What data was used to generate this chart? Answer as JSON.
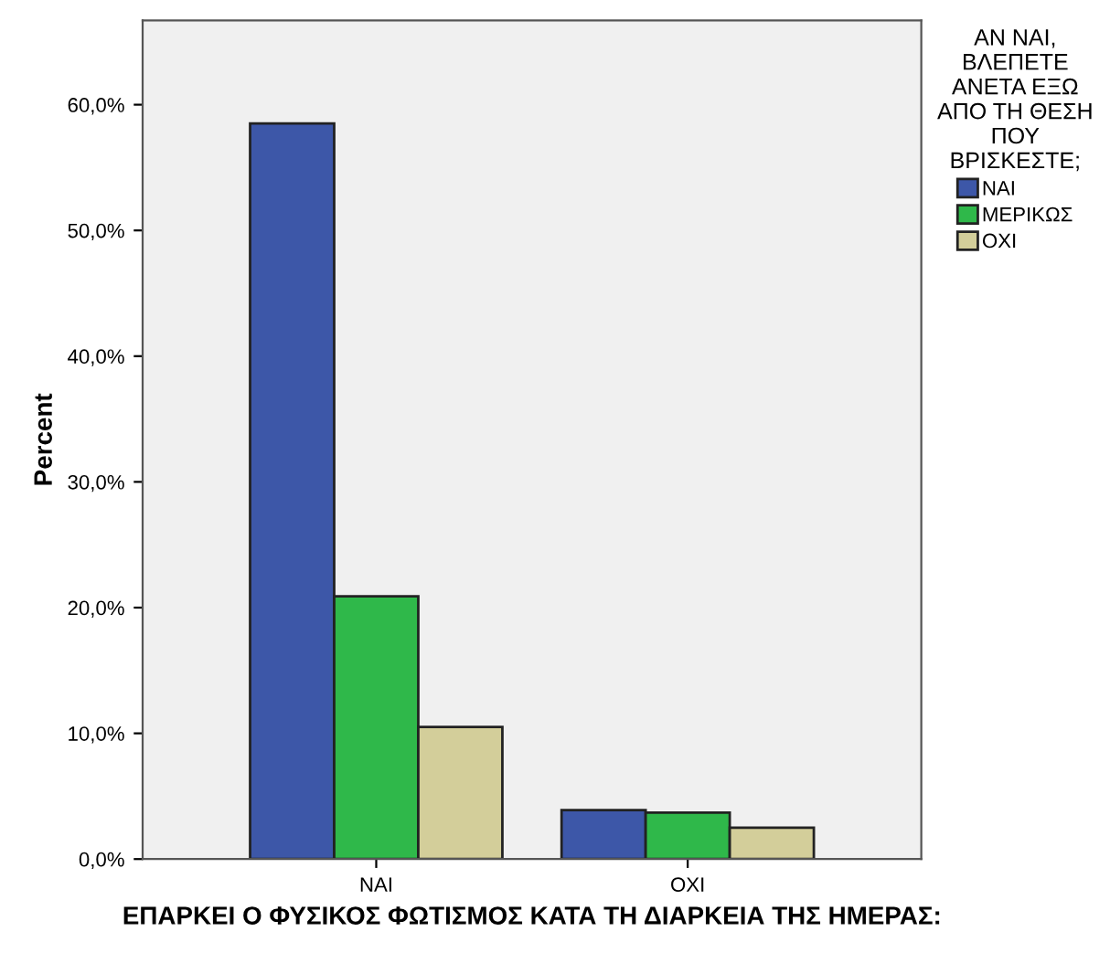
{
  "chart_data": {
    "type": "bar",
    "xlabel": "ΕΠΑΡΚΕΙ Ο ΦΥΣΙΚΟΣ ΦΩΤΙΣΜΟΣ ΚΑΤΑ ΤΗ ΔΙΑΡΚΕΙΑ ΤΗΣ ΗΜΕΡΑΣ:",
    "ylabel": "Percent",
    "legend_title": "ΑΝ ΝΑΙ,\nΒΛΕΠΕΤΕ\nΑΝΕΤΑ ΕΞΩ\nΑΠΟ ΤΗ ΘΕΣΗ\nΠΟΥ\nΒΡΙΣΚΕΣΤΕ;",
    "categories": [
      "ΝΑΙ",
      "ΟΧΙ"
    ],
    "series": [
      {
        "name": "ΝΑΙ",
        "color": "#3d57a8",
        "values": [
          58.5,
          3.9
        ]
      },
      {
        "name": "ΜΕΡΙΚΩΣ",
        "color": "#2fb84a",
        "values": [
          20.9,
          3.7
        ]
      },
      {
        "name": "ΟΧΙ",
        "color": "#d3ce9a",
        "values": [
          10.5,
          2.5
        ]
      }
    ],
    "ylim": [
      0,
      66.7
    ],
    "yticks": [
      {
        "value": 0,
        "label": "0,0%"
      },
      {
        "value": 10,
        "label": "10,0%"
      },
      {
        "value": 20,
        "label": "20,0%"
      },
      {
        "value": 30,
        "label": "30,0%"
      },
      {
        "value": 40,
        "label": "40,0%"
      },
      {
        "value": 50,
        "label": "50,0%"
      },
      {
        "value": 60,
        "label": "60,0%"
      }
    ],
    "grid": false,
    "legend": "right"
  }
}
